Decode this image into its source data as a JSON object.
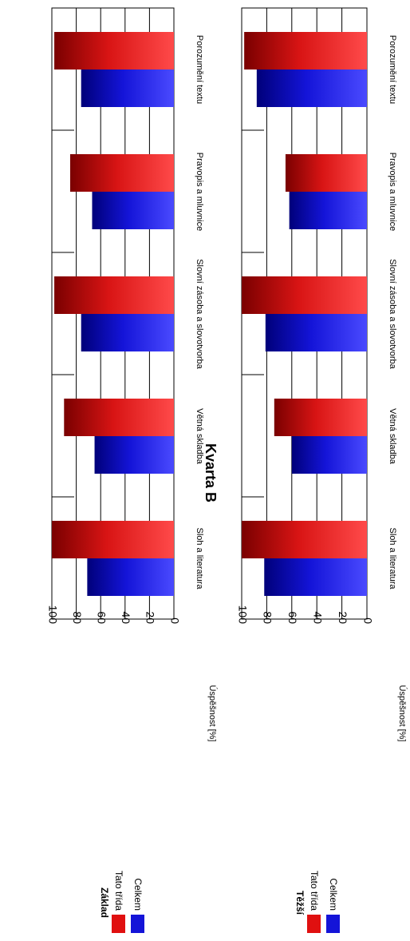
{
  "title": "Kvarta B",
  "colors": {
    "tato_trida": "#e01010",
    "celkem": "#1414d8"
  },
  "chart_data": [
    {
      "type": "bar",
      "orientation": "horizontal",
      "title": "Kvarta B",
      "ylabel": "Úspěšnost [%]",
      "ylim": [
        0,
        100
      ],
      "ticks": [
        "0",
        "20",
        "40",
        "60",
        "80",
        "100"
      ],
      "grid": true,
      "legend_title": "Základ",
      "legend": [
        "Tato třída",
        "Celkem"
      ],
      "categories": [
        "Porozumění textu",
        "Pravopis a mluvnice",
        "Slovní zásoba a slovotvorba",
        "Větná skladba",
        "Sloh a literatura"
      ],
      "series": [
        {
          "name": "Tato třída",
          "values": [
            98,
            85,
            98,
            90,
            100
          ]
        },
        {
          "name": "Celkem",
          "values": [
            76,
            67,
            76,
            65,
            71
          ]
        }
      ]
    },
    {
      "type": "bar",
      "orientation": "horizontal",
      "title": "",
      "ylabel": "Úspěšnost [%]",
      "ylim": [
        0,
        100
      ],
      "ticks": [
        "0",
        "20",
        "40",
        "60",
        "80",
        "100"
      ],
      "grid": true,
      "legend_title": "Těžší",
      "legend": [
        "Tato třída",
        "Celkem"
      ],
      "categories": [
        "Porozumění textu",
        "Pravopis a mluvnice",
        "Slovní zásoba a slovotvorba",
        "Větná skladba",
        "Sloh a literatura"
      ],
      "series": [
        {
          "name": "Tato třída",
          "values": [
            98,
            65,
            100,
            74,
            100
          ]
        },
        {
          "name": "Celkem",
          "values": [
            88,
            62,
            81,
            60,
            82
          ]
        }
      ]
    }
  ]
}
